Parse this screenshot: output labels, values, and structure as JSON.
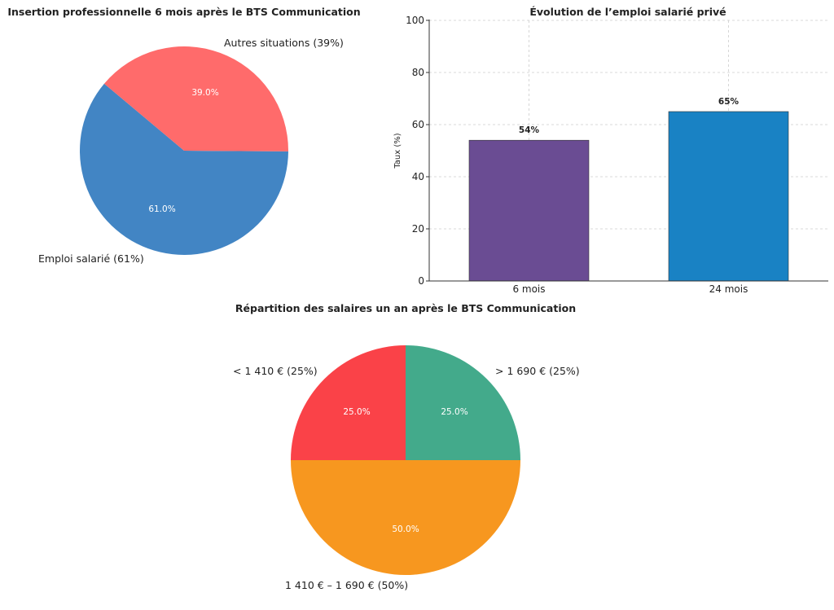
{
  "chart_data": [
    {
      "type": "pie",
      "title": "Insertion professionnelle 6 mois après le BTS Communication",
      "slices": [
        {
          "label": "Emploi salarié (61%)",
          "value": 61,
          "pct_label": "61.0%",
          "color": "#4285c4"
        },
        {
          "label": "Autres situations (39%)",
          "value": 39,
          "pct_label": "39.0%",
          "color": "#ff6b6b"
        }
      ]
    },
    {
      "type": "bar",
      "title": "Évolution de l’emploi salarié privé",
      "ylabel": "Taux (%)",
      "ylim": [
        0,
        100
      ],
      "yticks": [
        "0",
        "20",
        "40",
        "60",
        "80",
        "100"
      ],
      "grid": true,
      "categories": [
        "6 mois",
        "24 mois"
      ],
      "values": [
        54,
        65
      ],
      "value_labels": [
        "54%",
        "65%"
      ],
      "colors": [
        "#6a4c93",
        "#1982c4"
      ]
    },
    {
      "type": "pie",
      "title": "Répartition des salaires un an après le BTS Communication",
      "slices": [
        {
          "label": "< 1 410 € (25%)",
          "value": 25,
          "pct_label": "25.0%",
          "color": "#fa4248"
        },
        {
          "label": "1 410 € – 1 690 € (50%)",
          "value": 50,
          "pct_label": "50.0%",
          "color": "#f7971f"
        },
        {
          "label": "> 1 690 € (25%)",
          "value": 25,
          "pct_label": "25.0%",
          "color": "#43aa8b"
        }
      ]
    }
  ]
}
